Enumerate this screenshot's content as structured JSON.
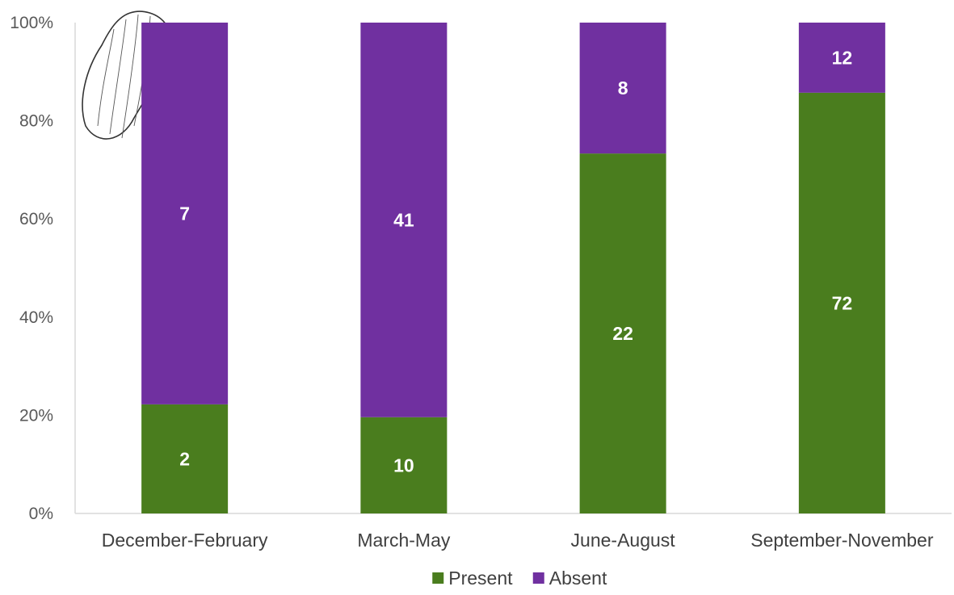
{
  "chart_data": {
    "type": "bar",
    "stacked": true,
    "percent_stacked": true,
    "categories": [
      "December-February",
      "March-May",
      "June-August",
      "September-November"
    ],
    "series": [
      {
        "name": "Present",
        "values": [
          2,
          10,
          22,
          72
        ],
        "color": "#4a7d1e"
      },
      {
        "name": "Absent",
        "values": [
          7,
          41,
          8,
          12
        ],
        "color": "#7030a0"
      }
    ],
    "y_ticks": [
      "0%",
      "20%",
      "40%",
      "60%",
      "80%",
      "100%"
    ],
    "ylim": [
      0,
      100
    ],
    "grid": false,
    "legend_position": "bottom",
    "title": "",
    "xlabel": "",
    "ylabel": ""
  },
  "illustration": {
    "icon": "sea-cucumber-sketch-icon"
  }
}
